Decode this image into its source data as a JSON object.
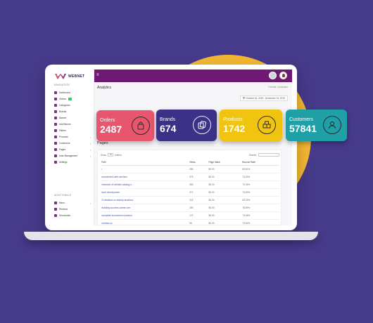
{
  "brand": {
    "logo_text": "WEBNET"
  },
  "topbar": {
    "menu_icon": "hamburger-icon"
  },
  "sidebar": {
    "section_navigation": "NAVIGATION",
    "section_additionals": "ADDITIONALS",
    "items": [
      {
        "label": "Dashboard",
        "icon": "dashboard-icon"
      },
      {
        "label": "Orders",
        "icon": "orders-icon",
        "badge": true
      },
      {
        "label": "Categories",
        "icon": "categories-icon"
      },
      {
        "label": "Brands",
        "icon": "brands-icon"
      },
      {
        "label": "Banner",
        "icon": "banner-icon"
      },
      {
        "label": "Add Banner",
        "icon": "add-banner-icon"
      },
      {
        "label": "Sliders",
        "icon": "sliders-icon"
      },
      {
        "label": "Products",
        "icon": "products-icon",
        "arrow": "›"
      },
      {
        "label": "Customers",
        "icon": "customers-icon",
        "arrow": "›"
      },
      {
        "label": "Pages",
        "icon": "pages-icon",
        "arrow": "›"
      },
      {
        "label": "User Management",
        "icon": "users-icon",
        "arrow": "›"
      },
      {
        "label": "Settings",
        "icon": "settings-icon"
      },
      {
        "label": "Menu",
        "icon": "menu-icon",
        "arrow": "›"
      },
      {
        "label": "Reviews",
        "icon": "reviews-icon"
      },
      {
        "label": "Shortcodes",
        "icon": "shortcodes-icon"
      }
    ]
  },
  "main": {
    "title": "Analytics",
    "breadcrumb": "Tutorial  /  Analytics",
    "date_range": "📅 October 16, 2019 - November 14, 2019",
    "pages_title": "Pages",
    "show_label": "Show",
    "show_value": "10",
    "entries_label": "entries",
    "search_label": "Search:",
    "columns": [
      "Path",
      "Views",
      "Page Value",
      "Bounce Rate"
    ],
    "rows": [
      [
        "/",
        "456",
        "$0.00",
        "69.61%"
      ],
      [
        "/customized-web-services",
        "473",
        "$0.00",
        "74.43%"
      ],
      [
        "/research-of-website-catalog-n...",
        "363",
        "$0.00",
        "72.45%"
      ],
      [
        "/web-development",
        "371",
        "$0.00",
        "73.59%"
      ],
      [
        "/3-mistakes-on-startup-business",
        "215",
        "$0.00",
        "63.76%"
      ],
      [
        "/building-success-career.com",
        "180",
        "$0.00",
        "78.89%"
      ],
      [
        "/complete-ecommerce-solution",
        "173",
        "$0.00",
        "74.48%"
      ],
      [
        "/contact-us",
        "96",
        "$0.00",
        "73.62%"
      ]
    ]
  },
  "cards": {
    "orders": {
      "label": "Orders",
      "value": "2487",
      "color": "#e8566e",
      "icon": "shopping-bag-icon"
    },
    "brands": {
      "label": "Brands",
      "value": "674",
      "color": "#3b3287",
      "icon": "tags-icon"
    },
    "products": {
      "label": "Products",
      "value": "1742",
      "color": "#f1c40f",
      "icon": "boxes-icon"
    },
    "customers": {
      "label": "Customers",
      "value": "57841",
      "color": "#1ea0a6",
      "icon": "customer-icon"
    }
  },
  "colors": {
    "background": "#463a8a",
    "accent": "#6e1a73",
    "orb": "#f2b632"
  }
}
